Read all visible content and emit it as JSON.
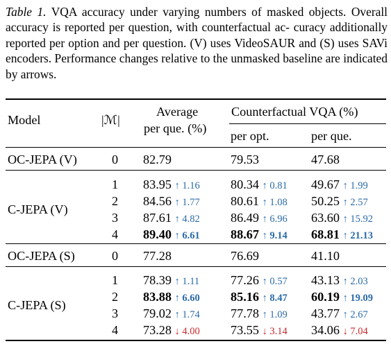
{
  "caption": {
    "label": "Table 1.",
    "lines": [
      " VQA accuracy under varying numbers of masked objects.",
      "Overall accuracy is reported per question, with counterfactual ac-",
      "curacy additionally reported per option and per question. (V) uses",
      "VideoSAUR and (S) uses SAVi encoders. Performance changes",
      "relative to the unmasked baseline are indicated by arrows."
    ]
  },
  "header": {
    "model": "Model",
    "mask": "|ℳ|",
    "average_line1": "Average",
    "average_line2": "per que. (%)",
    "cf_title": "Counterfactual VQA (%)",
    "cf_opt": "per opt.",
    "cf_que": "per que."
  },
  "groups": [
    {
      "model": "OC-JEPA (V)",
      "rows": [
        {
          "m": "0",
          "avg": {
            "v": "82.79",
            "d": "",
            "dir": "",
            "b": false
          },
          "opt": {
            "v": "79.53",
            "d": "",
            "dir": "",
            "b": false
          },
          "que": {
            "v": "47.68",
            "d": "",
            "dir": "",
            "b": false
          }
        }
      ]
    },
    {
      "model": "C-JEPA (V)",
      "rows": [
        {
          "m": "1",
          "avg": {
            "v": "83.95",
            "d": "↑ 1.16",
            "dir": "up",
            "b": false
          },
          "opt": {
            "v": "80.34",
            "d": "↑ 0.81",
            "dir": "up",
            "b": false
          },
          "que": {
            "v": "49.67",
            "d": "↑ 1.99",
            "dir": "up",
            "b": false
          }
        },
        {
          "m": "2",
          "avg": {
            "v": "84.56",
            "d": "↑ 1.77",
            "dir": "up",
            "b": false
          },
          "opt": {
            "v": "80.61",
            "d": "↑ 1.08",
            "dir": "up",
            "b": false
          },
          "que": {
            "v": "50.25",
            "d": "↑ 2.57",
            "dir": "up",
            "b": false
          }
        },
        {
          "m": "3",
          "avg": {
            "v": "87.61",
            "d": "↑ 4.82",
            "dir": "up",
            "b": false
          },
          "opt": {
            "v": "86.49",
            "d": "↑ 6.96",
            "dir": "up",
            "b": false
          },
          "que": {
            "v": "63.60",
            "d": "↑ 15.92",
            "dir": "up",
            "b": false
          }
        },
        {
          "m": "4",
          "avg": {
            "v": "89.40",
            "d": "↑ 6.61",
            "dir": "up",
            "b": true
          },
          "opt": {
            "v": "88.67",
            "d": "↑ 9.14",
            "dir": "up",
            "b": true
          },
          "que": {
            "v": "68.81",
            "d": "↑ 21.13",
            "dir": "up",
            "b": true
          }
        }
      ]
    },
    {
      "model": "OC-JEPA (S)",
      "rows": [
        {
          "m": "0",
          "avg": {
            "v": "77.28",
            "d": "",
            "dir": "",
            "b": false
          },
          "opt": {
            "v": "76.69",
            "d": "",
            "dir": "",
            "b": false
          },
          "que": {
            "v": "41.10",
            "d": "",
            "dir": "",
            "b": false
          }
        }
      ]
    },
    {
      "model": "C-JEPA (S)",
      "rows": [
        {
          "m": "1",
          "avg": {
            "v": "78.39",
            "d": "↑ 1.11",
            "dir": "up",
            "b": false
          },
          "opt": {
            "v": "77.26",
            "d": "↑ 0.57",
            "dir": "up",
            "b": false
          },
          "que": {
            "v": "43.13",
            "d": "↑ 2.03",
            "dir": "up",
            "b": false
          }
        },
        {
          "m": "2",
          "avg": {
            "v": "83.88",
            "d": "↑ 6.60",
            "dir": "up",
            "b": true
          },
          "opt": {
            "v": "85.16",
            "d": "↑ 8.47",
            "dir": "up",
            "b": true
          },
          "que": {
            "v": "60.19",
            "d": "↑ 19.09",
            "dir": "up",
            "b": true
          }
        },
        {
          "m": "3",
          "avg": {
            "v": "79.02",
            "d": "↑ 1.74",
            "dir": "up",
            "b": false
          },
          "opt": {
            "v": "77.78",
            "d": "↑ 1.09",
            "dir": "up",
            "b": false
          },
          "que": {
            "v": "43.77",
            "d": "↑ 2.67",
            "dir": "up",
            "b": false
          }
        },
        {
          "m": "4",
          "avg": {
            "v": "73.28",
            "d": "↓ 4.00",
            "dir": "down",
            "b": false
          },
          "opt": {
            "v": "73.55",
            "d": "↓ 3.14",
            "dir": "down",
            "b": false
          },
          "que": {
            "v": "34.06",
            "d": "↓ 7.04",
            "dir": "down",
            "b": false
          }
        }
      ]
    }
  ]
}
